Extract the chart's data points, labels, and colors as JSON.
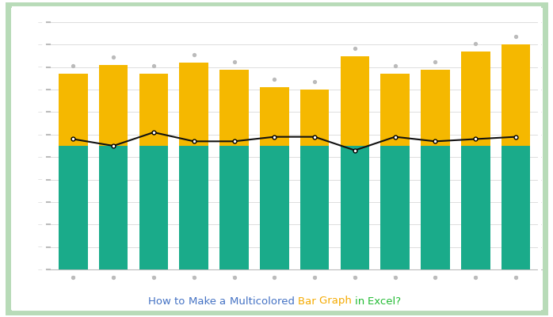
{
  "n_bars": 12,
  "teal_values": [
    5.5,
    5.5,
    5.5,
    5.5,
    5.5,
    5.5,
    5.5,
    5.5,
    5.5,
    5.5,
    5.5,
    5.5
  ],
  "gold_values": [
    3.2,
    3.6,
    3.2,
    3.7,
    3.4,
    2.6,
    2.5,
    4.0,
    3.2,
    3.4,
    4.2,
    4.5
  ],
  "line_y": [
    5.8,
    5.5,
    6.1,
    5.7,
    5.7,
    5.9,
    5.9,
    5.3,
    5.9,
    5.7,
    5.8,
    5.9
  ],
  "teal_color": "#1aab8a",
  "gold_color": "#f5b800",
  "line_color": "#111111",
  "background_color": "#ffffff",
  "outer_border_color": "#b8dbb8",
  "grid_color": "#dddddd",
  "tick_color": "#bbbbbb",
  "title_words": [
    "How",
    "to",
    "Make",
    "a",
    "Multicolored",
    "Bar",
    "Graph",
    "in",
    "Excel?"
  ],
  "word_colors": {
    "How": "#4472C4",
    "to": "#4472C4",
    "Make": "#4472C4",
    "a": "#4472C4",
    "Multicolored": "#4472C4",
    "Bar": "#f5aa00",
    "Graph": "#f5aa00",
    "in": "#22bb33",
    "Excel?": "#22bb33"
  },
  "bar_width": 0.72,
  "ylim": [
    0,
    11
  ],
  "xlim": [
    -0.65,
    11.65
  ]
}
